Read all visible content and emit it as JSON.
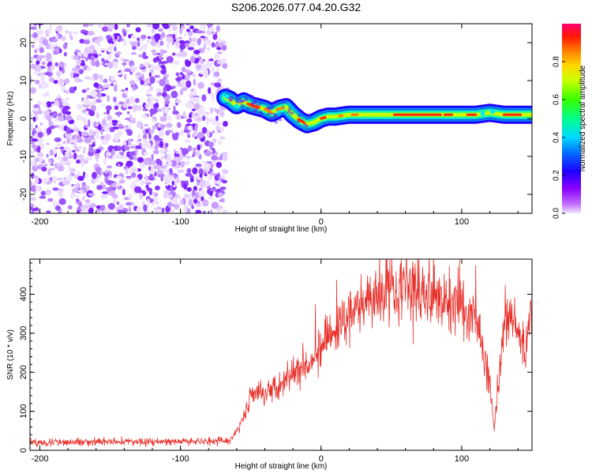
{
  "title": "S206.2026.077.04.20.G32",
  "chart_data": [
    {
      "type": "heatmap",
      "xlabel": "Height of straight line (km)",
      "ylabel": "Frequency (Hz)",
      "xlim": [
        -207,
        150
      ],
      "ylim": [
        -25,
        25
      ],
      "x_ticks": [
        -200,
        -100,
        0,
        100
      ],
      "y_ticks": [
        -20,
        -10,
        0,
        10,
        20
      ],
      "noise_region_x": [
        -207,
        -68
      ],
      "ridge": {
        "x": [
          -68,
          -65,
          -60,
          -55,
          -50,
          -45,
          -40,
          -35,
          -30,
          -25,
          -20,
          -15,
          -10,
          -5,
          0,
          5,
          10,
          20,
          30,
          40,
          50,
          60,
          70,
          80,
          90,
          100,
          110,
          120,
          130,
          140,
          150
        ],
        "y": [
          5.5,
          5,
          3.5,
          4.5,
          3.5,
          3,
          2.5,
          1.5,
          2.5,
          3,
          1,
          -0.5,
          -1.5,
          -1,
          0,
          0.5,
          0.5,
          1,
          1,
          1,
          1,
          1,
          1,
          1,
          1,
          1,
          1,
          1.5,
          1,
          1,
          1
        ]
      },
      "colorbar": {
        "label": "Normalized spectral amplitude",
        "range": [
          0,
          1
        ],
        "ticks": [
          "0.0",
          "0.2",
          "0.4",
          "0.6",
          "0.8"
        ],
        "tick_values": [
          0,
          0.2,
          0.4,
          0.6,
          0.8
        ]
      }
    },
    {
      "type": "line",
      "xlabel": "Height of straight line (km)",
      "ylabel": "SNR (10 * v/v)",
      "xlim": [
        -207,
        150
      ],
      "ylim": [
        0,
        490
      ],
      "x_ticks": [
        -200,
        -100,
        0,
        100
      ],
      "y_ticks": [
        0,
        100,
        200,
        300,
        400
      ],
      "series": [
        {
          "name": "SNR",
          "color": "#e8302a",
          "x": [
            -207,
            -150,
            -100,
            -65,
            -58,
            -50,
            -40,
            -30,
            -20,
            -10,
            0,
            10,
            20,
            30,
            40,
            50,
            60,
            70,
            80,
            90,
            100,
            110,
            115,
            120,
            123,
            126,
            130,
            135,
            140,
            145,
            150
          ],
          "y": [
            20,
            22,
            22,
            25,
            60,
            140,
            150,
            170,
            200,
            230,
            260,
            300,
            340,
            380,
            410,
            425,
            420,
            410,
            400,
            380,
            370,
            340,
            250,
            180,
            50,
            180,
            300,
            360,
            300,
            250,
            360
          ]
        }
      ]
    }
  ]
}
